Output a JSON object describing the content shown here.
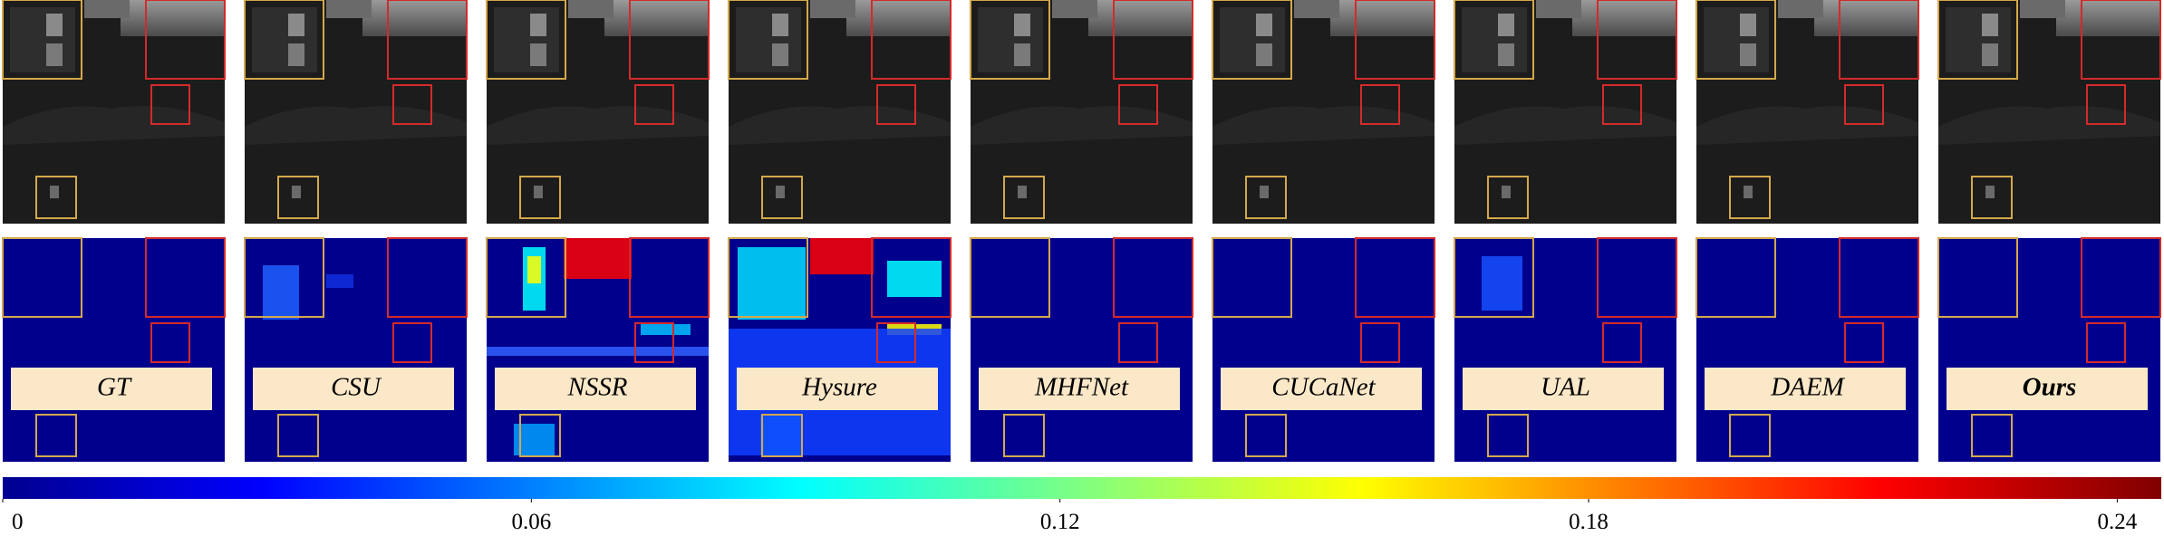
{
  "panels": {
    "methods": [
      "GT",
      "CSU",
      "NSSR",
      "Hysure",
      "MHFNet",
      "CUCaNet",
      "UAL",
      "DAEM",
      "Ours"
    ]
  },
  "colorbar": {
    "type": "colorbar",
    "range": [
      0,
      0.245
    ],
    "ticks": [
      0,
      0.06,
      0.12,
      0.18,
      0.24
    ]
  }
}
